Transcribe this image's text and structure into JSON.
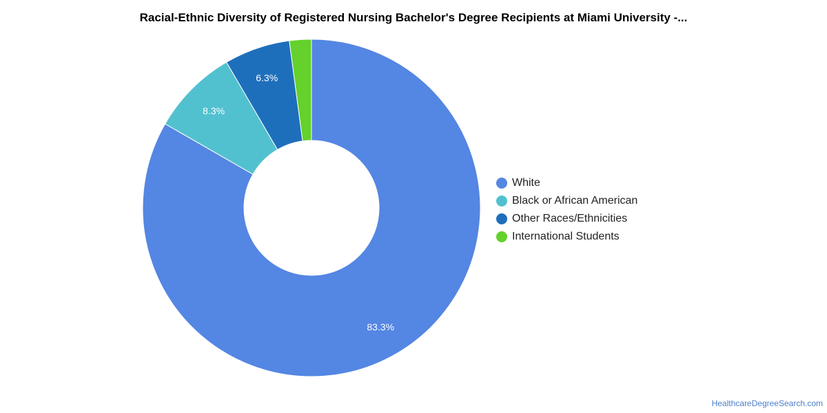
{
  "chart_data": {
    "type": "pie",
    "donut": true,
    "title": "Racial-Ethnic Diversity of Registered Nursing Bachelor's Degree Recipients at Miami University -...",
    "legend_position": "right",
    "slices": [
      {
        "name": "White",
        "value": 83.3,
        "label": "83.3%",
        "color": "#5486e3"
      },
      {
        "name": "Black or African American",
        "value": 8.3,
        "label": "8.3%",
        "color": "#52c1cf"
      },
      {
        "name": "Other Races/Ethnicities",
        "value": 6.3,
        "label": "6.3%",
        "color": "#1e6fbb"
      },
      {
        "name": "International Students",
        "value": 2.1,
        "label": "",
        "color": "#64d12c"
      }
    ]
  },
  "credit": "HealthcareDegreeSearch.com"
}
